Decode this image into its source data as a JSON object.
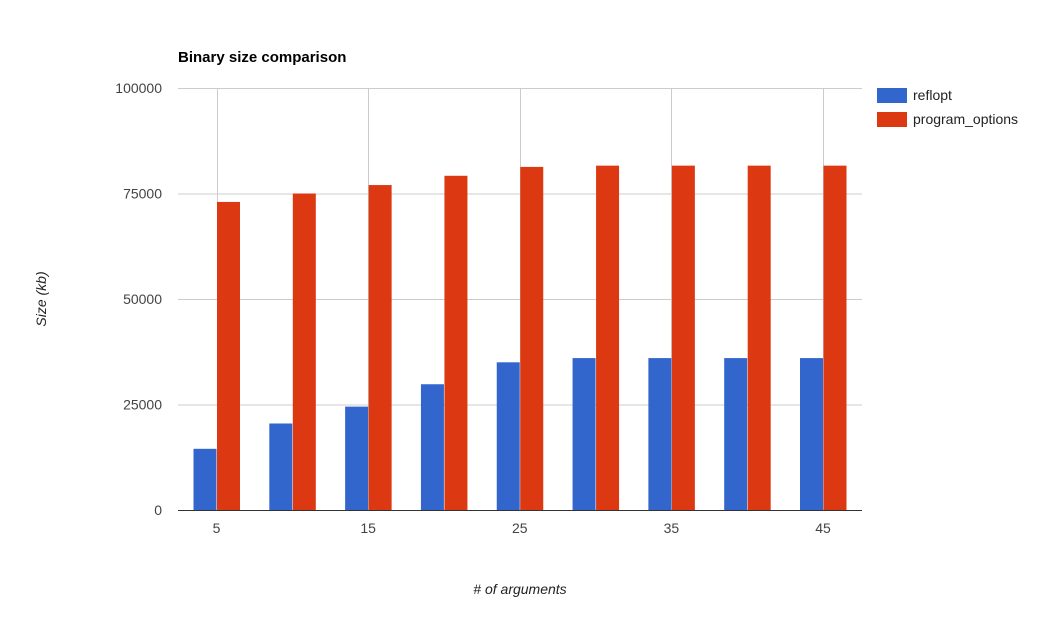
{
  "chart_data": {
    "type": "bar",
    "title": "Binary size comparison",
    "xlabel": "# of arguments",
    "ylabel": "Size (kb)",
    "ylim": [
      0,
      100000
    ],
    "y_ticks": [
      0,
      25000,
      50000,
      75000,
      100000
    ],
    "x": [
      5,
      10,
      15,
      20,
      25,
      30,
      35,
      40,
      45
    ],
    "x_tick_labels": [
      5,
      15,
      25,
      35,
      45
    ],
    "vertical_grid_at": [
      5,
      15,
      25,
      35,
      45
    ],
    "legend_position": "right",
    "grid": true,
    "series": [
      {
        "name": "reflopt",
        "color": "#3366cc",
        "values": [
          14500,
          20500,
          24500,
          29800,
          35000,
          36000,
          36000,
          36000,
          36000
        ]
      },
      {
        "name": "program_options",
        "color": "#dc3912",
        "values": [
          73000,
          75000,
          77000,
          79200,
          81300,
          81600,
          81600,
          81600,
          81600
        ]
      }
    ]
  }
}
